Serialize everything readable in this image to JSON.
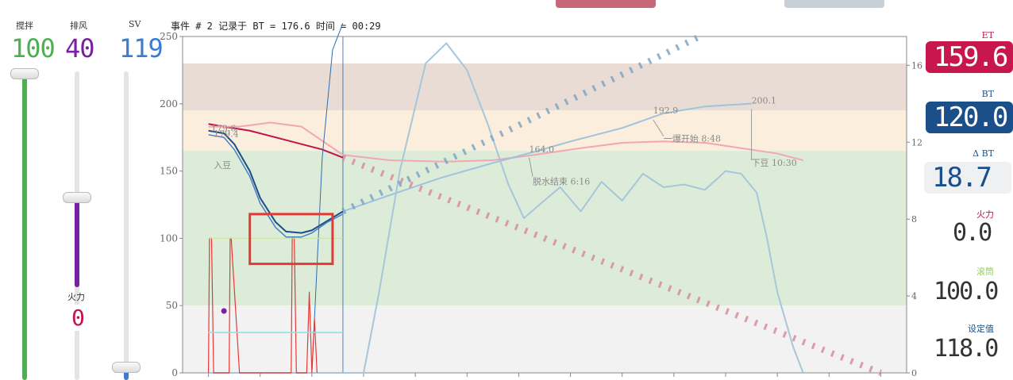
{
  "header": {
    "stir_label": "搅拌",
    "stir_value": "100",
    "fan_label": "排风",
    "fan_value": "40",
    "sv_label": "SV",
    "sv_value": "119",
    "event_title": "事件 # 2 记录于 BT = 176.6  时间 = 00:29"
  },
  "sliders": {
    "fire_label": "火力",
    "fire_value": "0",
    "stir_level": 1.0,
    "fan_level": 0.4,
    "sv_level": 0.04
  },
  "readouts": {
    "et_label": "ET",
    "et_value": "159.6",
    "bt_label": "BT",
    "bt_value": "120.0",
    "dbt_label": "Δ BT",
    "dbt_value": "18.7",
    "fire_label": "火力",
    "fire_value": "0.0",
    "drum_label": "滚筒",
    "drum_value": "100.0",
    "setpoint_label": "设定值",
    "setpoint_value": "118.0"
  },
  "colors": {
    "et": "#c0134a",
    "bt": "#1a4f8a",
    "stir": "#4caf50",
    "fan": "#7b1fa2",
    "sv": "#3a7bd5",
    "highlight_box": "#e53935"
  },
  "chart_data": {
    "type": "line",
    "ylim": [
      0,
      250
    ],
    "yticks": [
      0,
      50,
      100,
      150,
      200,
      250
    ],
    "ylim_right": [
      0,
      17.5
    ],
    "yticks_right": [
      0,
      4,
      8,
      12,
      16
    ],
    "x_minutes_range": [
      -0.5,
      13.5
    ],
    "bands": [
      {
        "from": 195,
        "to": 230,
        "color": "#e8dcd4"
      },
      {
        "from": 165,
        "to": 195,
        "color": "#fbeedc"
      },
      {
        "from": 50,
        "to": 165,
        "color": "#dcecd8"
      },
      {
        "from": 0,
        "to": 50,
        "color": "#f2f2f2"
      }
    ],
    "annotations": [
      {
        "x": 0.05,
        "y": 179.6,
        "text": "179.6"
      },
      {
        "x": 0.1,
        "y": 175.5,
        "text": "179.4"
      },
      {
        "x": 0.1,
        "y": 152,
        "text": "入豆"
      },
      {
        "x": 6.2,
        "y": 164.0,
        "text": "164.0"
      },
      {
        "x": 6.27,
        "y": 140,
        "text": "脱水结束 6:16"
      },
      {
        "x": 8.6,
        "y": 192.9,
        "text": "192.9"
      },
      {
        "x": 8.8,
        "y": 172,
        "text": "一爆开始 8:48"
      },
      {
        "x": 10.5,
        "y": 200.1,
        "text": "200.1"
      },
      {
        "x": 10.5,
        "y": 154,
        "text": "下豆 10:30"
      }
    ],
    "series": [
      {
        "type": "line",
        "color": "#c0134a",
        "width": 2,
        "x": [
          0,
          0.3,
          0.8,
          1.5,
          2.2,
          2.6
        ],
        "y": [
          185,
          183,
          180,
          173,
          166,
          160
        ]
      },
      {
        "type": "line",
        "color": "#f1a7b4",
        "width": 2,
        "x": [
          0,
          0.6,
          1.2,
          1.8,
          2.6,
          3.5,
          4.6,
          5.5,
          6.3,
          7.2,
          8.0,
          8.8,
          9.6,
          10.3,
          11.0,
          11.5
        ],
        "y": [
          183,
          183,
          186,
          183,
          162,
          158,
          157,
          158,
          162,
          167,
          171,
          172,
          171,
          167,
          163,
          158
        ]
      },
      {
        "type": "line",
        "color": "#1a4f8a",
        "width": 2,
        "x": [
          0,
          0.3,
          0.5,
          0.8,
          1.0,
          1.3,
          1.5,
          1.8,
          2.0,
          2.3,
          2.6
        ],
        "y": [
          180,
          178,
          170,
          150,
          130,
          112,
          105,
          104,
          106,
          113,
          120
        ]
      },
      {
        "type": "line",
        "color": "#4a7fc1",
        "width": 1.5,
        "x": [
          0,
          0.3,
          0.5,
          0.8,
          1.0,
          1.3,
          1.5,
          1.8,
          2.0,
          2.3,
          2.6
        ],
        "y": [
          177,
          175,
          166,
          146,
          126,
          108,
          101,
          101,
          104,
          112,
          118
        ]
      },
      {
        "type": "line",
        "color": "#9fc2dd",
        "width": 2,
        "x": [
          2.6,
          3.5,
          4.5,
          5.5,
          6.27,
          7.0,
          8.0,
          8.8,
          9.6,
          10.5
        ],
        "y": [
          120,
          132,
          145,
          156,
          164,
          172,
          182,
          192.9,
          198,
          200.1
        ]
      },
      {
        "type": "line",
        "color": "#a7c6da",
        "width": 2,
        "x": [
          0,
          0.3,
          0.6,
          1.0,
          1.5,
          2.0,
          2.5,
          3.0,
          3.3,
          3.7,
          4.2,
          4.6,
          5.0,
          5.4,
          5.8,
          6.1,
          6.4,
          6.8,
          7.2,
          7.6,
          8.0,
          8.4,
          8.8,
          9.2,
          9.6,
          10.0,
          10.3,
          10.6
        ],
        "y": [
          0,
          0,
          0,
          0,
          0,
          0,
          0,
          0,
          60,
          150,
          230,
          245,
          225,
          185,
          140,
          115,
          125,
          138,
          120,
          142,
          128,
          148,
          138,
          140,
          136,
          150,
          148,
          134
        ]
      },
      {
        "type": "line",
        "color": "#a7c6da",
        "width": 2,
        "x": [
          10.6,
          10.8,
          11.0,
          11.3,
          11.5
        ],
        "y": [
          134,
          100,
          60,
          20,
          0
        ]
      },
      {
        "type": "line",
        "color": "#2f6db0",
        "width": 1,
        "x": [
          2.0,
          2.1,
          2.2,
          2.4,
          2.6
        ],
        "y": [
          0,
          80,
          160,
          240,
          260
        ]
      },
      {
        "type": "line",
        "color": "#e53935",
        "width": 1.2,
        "x": [
          0,
          0.02,
          0.06,
          0.1,
          0.4,
          0.42,
          0.44,
          0.6,
          1.6,
          1.62,
          1.66,
          1.7,
          1.9,
          1.95,
          2.0,
          2.05,
          2.1
        ],
        "y": [
          0,
          100,
          100,
          0,
          0,
          100,
          100,
          0,
          0,
          100,
          100,
          0,
          0,
          60,
          0,
          40,
          0
        ]
      },
      {
        "type": "line",
        "color": "#7fe3ef",
        "width": 1.5,
        "x": [
          0,
          2.6
        ],
        "y": [
          30,
          30
        ]
      },
      {
        "type": "line",
        "color": "#c8e6a0",
        "width": 1,
        "x": [
          0,
          2.6
        ],
        "y": [
          100,
          100
        ]
      },
      {
        "type": "dashed",
        "color": "#d98c9c",
        "width": 8,
        "x": [
          2.6,
          13.0
        ],
        "y": [
          160,
          0
        ]
      },
      {
        "type": "dashed",
        "color": "#7ea6c4",
        "width": 8,
        "x": [
          2.6,
          9.5
        ],
        "y": [
          120,
          250
        ]
      }
    ]
  }
}
